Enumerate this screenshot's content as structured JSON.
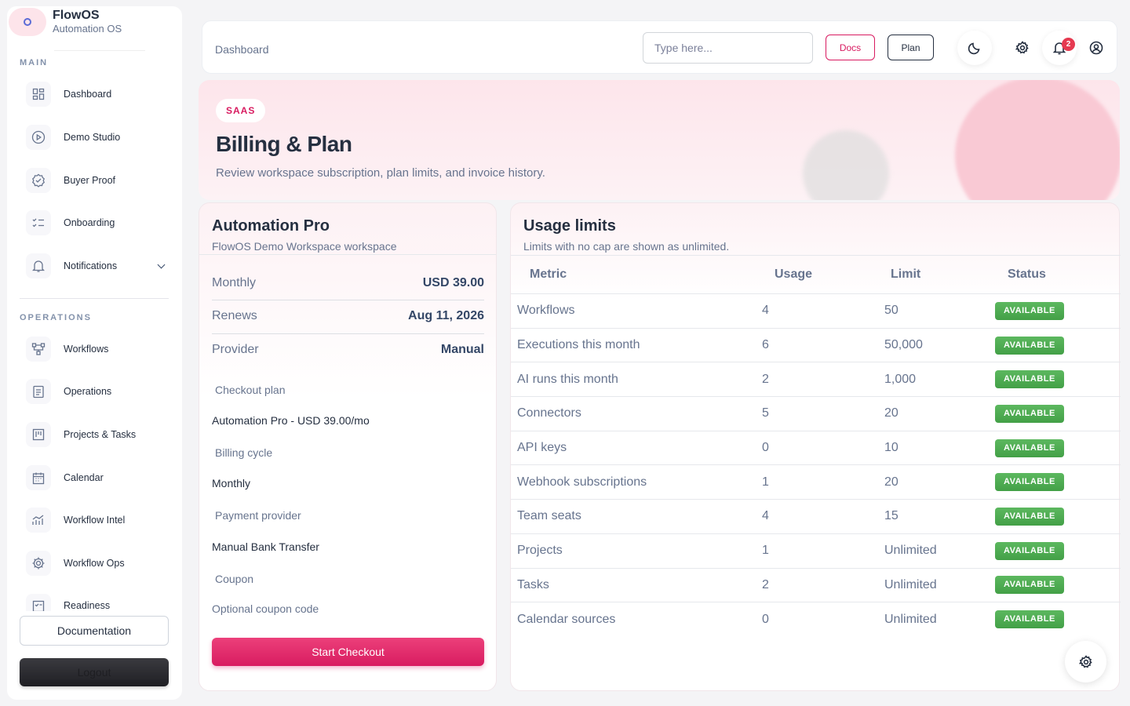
{
  "brand": {
    "name": "FlowOS",
    "subtitle": "Automation OS"
  },
  "sidebar": {
    "main_label": "MAIN",
    "main_items": [
      {
        "label": "Dashboard",
        "icon": "dashboard-icon"
      },
      {
        "label": "Demo Studio",
        "icon": "play-circle-icon"
      },
      {
        "label": "Buyer Proof",
        "icon": "verified-icon"
      },
      {
        "label": "Onboarding",
        "icon": "checklist-icon"
      },
      {
        "label": "Notifications",
        "icon": "bell-icon"
      }
    ],
    "ops_label": "OPERATIONS",
    "ops_items": [
      {
        "label": "Workflows",
        "icon": "workflow-icon"
      },
      {
        "label": "Operations",
        "icon": "clipboard-icon"
      },
      {
        "label": "Projects & Tasks",
        "icon": "kanban-icon"
      },
      {
        "label": "Calendar",
        "icon": "calendar-icon"
      },
      {
        "label": "Workflow Intel",
        "icon": "analytics-icon"
      },
      {
        "label": "Workflow Ops",
        "icon": "gear-icon"
      },
      {
        "label": "Readiness",
        "icon": "readiness-icon"
      }
    ],
    "documentation": "Documentation",
    "logout": "Logout"
  },
  "topbar": {
    "breadcrumb": "Dashboard",
    "search_placeholder": "Type here...",
    "docs": "Docs",
    "plan": "Plan",
    "notification_count": "2"
  },
  "hero": {
    "chip": "SAAS",
    "title": "Billing & Plan",
    "subtitle": "Review workspace subscription, plan limits, and invoice history."
  },
  "plan": {
    "title": "Automation Pro",
    "subtitle": "FlowOS Demo Workspace workspace",
    "rows": [
      {
        "k": "Monthly",
        "v": "USD 39.00"
      },
      {
        "k": "Renews",
        "v": "Aug 11, 2026"
      },
      {
        "k": "Provider",
        "v": "Manual"
      }
    ],
    "checkout_plan_label": "Checkout plan",
    "checkout_plan_value": "Automation Pro - USD 39.00/mo",
    "billing_cycle_label": "Billing cycle",
    "billing_cycle_value": "Monthly",
    "payment_provider_label": "Payment provider",
    "payment_provider_value": "Manual Bank Transfer",
    "coupon_label": "Coupon",
    "coupon_placeholder": "Optional coupon code",
    "checkout_button": "Start Checkout"
  },
  "usage": {
    "title": "Usage limits",
    "subtitle": "Limits with no cap are shown as unlimited.",
    "columns": [
      "Metric",
      "Usage",
      "Limit",
      "Status"
    ],
    "rows": [
      {
        "metric": "Workflows",
        "usage": "4",
        "limit": "50",
        "status": "AVAILABLE"
      },
      {
        "metric": "Executions this month",
        "usage": "6",
        "limit": "50,000",
        "status": "AVAILABLE"
      },
      {
        "metric": "AI runs this month",
        "usage": "2",
        "limit": "1,000",
        "status": "AVAILABLE"
      },
      {
        "metric": "Connectors",
        "usage": "5",
        "limit": "20",
        "status": "AVAILABLE"
      },
      {
        "metric": "API keys",
        "usage": "0",
        "limit": "10",
        "status": "AVAILABLE"
      },
      {
        "metric": "Webhook subscriptions",
        "usage": "1",
        "limit": "20",
        "status": "AVAILABLE"
      },
      {
        "metric": "Team seats",
        "usage": "4",
        "limit": "15",
        "status": "AVAILABLE"
      },
      {
        "metric": "Projects",
        "usage": "1",
        "limit": "Unlimited",
        "status": "AVAILABLE"
      },
      {
        "metric": "Tasks",
        "usage": "2",
        "limit": "Unlimited",
        "status": "AVAILABLE"
      },
      {
        "metric": "Calendar sources",
        "usage": "0",
        "limit": "Unlimited",
        "status": "AVAILABLE"
      }
    ]
  },
  "colors": {
    "accent": "#d81b60",
    "success": "#4caf50",
    "dark": "#252f40"
  }
}
